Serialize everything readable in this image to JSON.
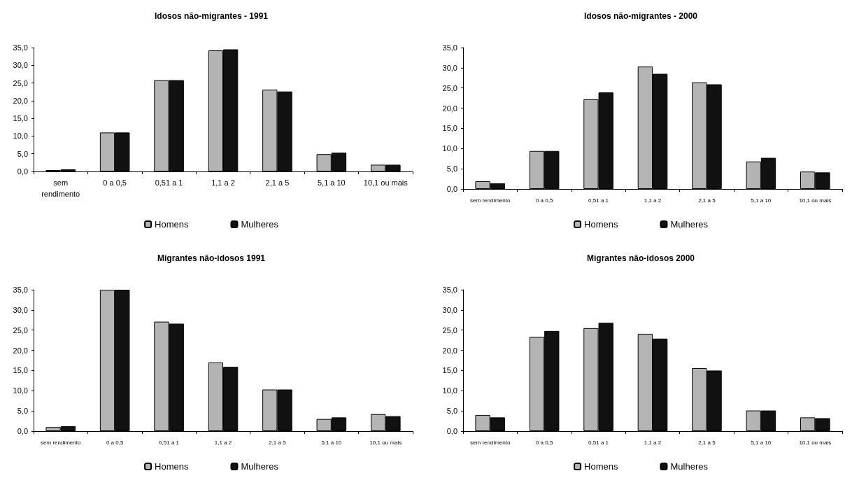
{
  "chart_data": [
    {
      "type": "bar",
      "title": "Idosos não-migrantes - 1991",
      "categories": [
        "sem\nrendimento",
        "0 a 0,5",
        "0,51 a 1",
        "1,1 a 2",
        "2,1 a 5",
        "5,1 a 10",
        "10,1 ou mais"
      ],
      "series": [
        {
          "name": "Homens",
          "color": "#b4b4b4",
          "values": [
            0.4,
            11.0,
            25.8,
            34.2,
            23.1,
            4.9,
            1.9
          ]
        },
        {
          "name": "Mulheres",
          "color": "#111111",
          "values": [
            0.6,
            11.0,
            25.8,
            34.5,
            22.6,
            5.3,
            1.9
          ]
        }
      ],
      "ylim": [
        0,
        35
      ],
      "yticks": [
        {
          "value": 0,
          "label": "0,0"
        },
        {
          "value": 5,
          "label": "5,0"
        },
        {
          "value": 10,
          "label": "10,0"
        },
        {
          "value": 15,
          "label": "15,0"
        },
        {
          "value": 20,
          "label": "20,0"
        },
        {
          "value": 25,
          "label": "25,0"
        },
        {
          "value": 30,
          "label": "30,0"
        },
        {
          "value": 35,
          "label": "35,0"
        }
      ],
      "grid": false,
      "legend": "bottom"
    },
    {
      "type": "bar",
      "title": "Idosos não-migrantes - 2000",
      "categories": [
        "sem rendimento",
        "0 a 0,5",
        "0,51 a 1",
        "1,1 a 2",
        "2,1 a 5",
        "5,1 a 10",
        "10,1 ou mais"
      ],
      "series": [
        {
          "name": "Homens",
          "color": "#b4b4b4",
          "values": [
            1.9,
            9.4,
            22.2,
            30.3,
            26.4,
            6.8,
            4.3
          ]
        },
        {
          "name": "Mulheres",
          "color": "#111111",
          "values": [
            1.4,
            9.4,
            23.9,
            28.5,
            25.9,
            7.7,
            4.1
          ]
        }
      ],
      "ylim": [
        0,
        35
      ],
      "yticks": [
        {
          "value": 0,
          "label": "0,0"
        },
        {
          "value": 5,
          "label": "5,0"
        },
        {
          "value": 10,
          "label": "10,0"
        },
        {
          "value": 15,
          "label": "15,0"
        },
        {
          "value": 20,
          "label": "20,0"
        },
        {
          "value": 25,
          "label": "25,0"
        },
        {
          "value": 30,
          "label": "30,0"
        },
        {
          "value": 35,
          "label": "35,0"
        }
      ],
      "grid": false,
      "legend": "bottom"
    },
    {
      "type": "bar",
      "title": "Migrantes não-idosos 1991",
      "categories": [
        "sem rendimento",
        "0 a 0,5",
        "0,51 a 1",
        "1,1 a 2",
        "2,1 a 5",
        "5,1 a 10",
        "10,1 ou mais"
      ],
      "series": [
        {
          "name": "Homens",
          "color": "#b4b4b4",
          "values": [
            1.0,
            35.0,
            27.1,
            17.0,
            10.3,
            3.0,
            4.2
          ]
        },
        {
          "name": "Mulheres",
          "color": "#111111",
          "values": [
            1.2,
            35.0,
            26.6,
            15.9,
            10.3,
            3.4,
            3.7
          ]
        }
      ],
      "ylim": [
        0,
        35
      ],
      "yticks": [
        {
          "value": 0,
          "label": "0,0"
        },
        {
          "value": 5,
          "label": "5,0"
        },
        {
          "value": 10,
          "label": "10,0"
        },
        {
          "value": 15,
          "label": "15,0"
        },
        {
          "value": 20,
          "label": "20,0"
        },
        {
          "value": 25,
          "label": "25,0"
        },
        {
          "value": 30,
          "label": "30,0"
        },
        {
          "value": 35,
          "label": "35,0"
        }
      ],
      "grid": false,
      "legend": "bottom"
    },
    {
      "type": "bar",
      "title": "Migrantes não-idosos 2000",
      "categories": [
        "sem rendimento",
        "0 a 0,5",
        "0,51 a 1",
        "1,1 a 2",
        "2,1 a 5",
        "5,1 a 10",
        "10,1 ou mais"
      ],
      "series": [
        {
          "name": "Homens",
          "color": "#b4b4b4",
          "values": [
            4.0,
            23.3,
            25.5,
            24.1,
            15.6,
            5.1,
            3.4
          ]
        },
        {
          "name": "Mulheres",
          "color": "#111111",
          "values": [
            3.4,
            24.8,
            26.8,
            22.9,
            15.0,
            5.1,
            3.2
          ]
        }
      ],
      "ylim": [
        0,
        35
      ],
      "yticks": [
        {
          "value": 0,
          "label": "0,0"
        },
        {
          "value": 5,
          "label": "5,0"
        },
        {
          "value": 10,
          "label": "10,0"
        },
        {
          "value": 15,
          "label": "15,0"
        },
        {
          "value": 20,
          "label": "20,0"
        },
        {
          "value": 25,
          "label": "25,0"
        },
        {
          "value": 30,
          "label": "30,0"
        },
        {
          "value": 35,
          "label": "35,0"
        }
      ],
      "grid": false,
      "legend": "bottom"
    }
  ]
}
